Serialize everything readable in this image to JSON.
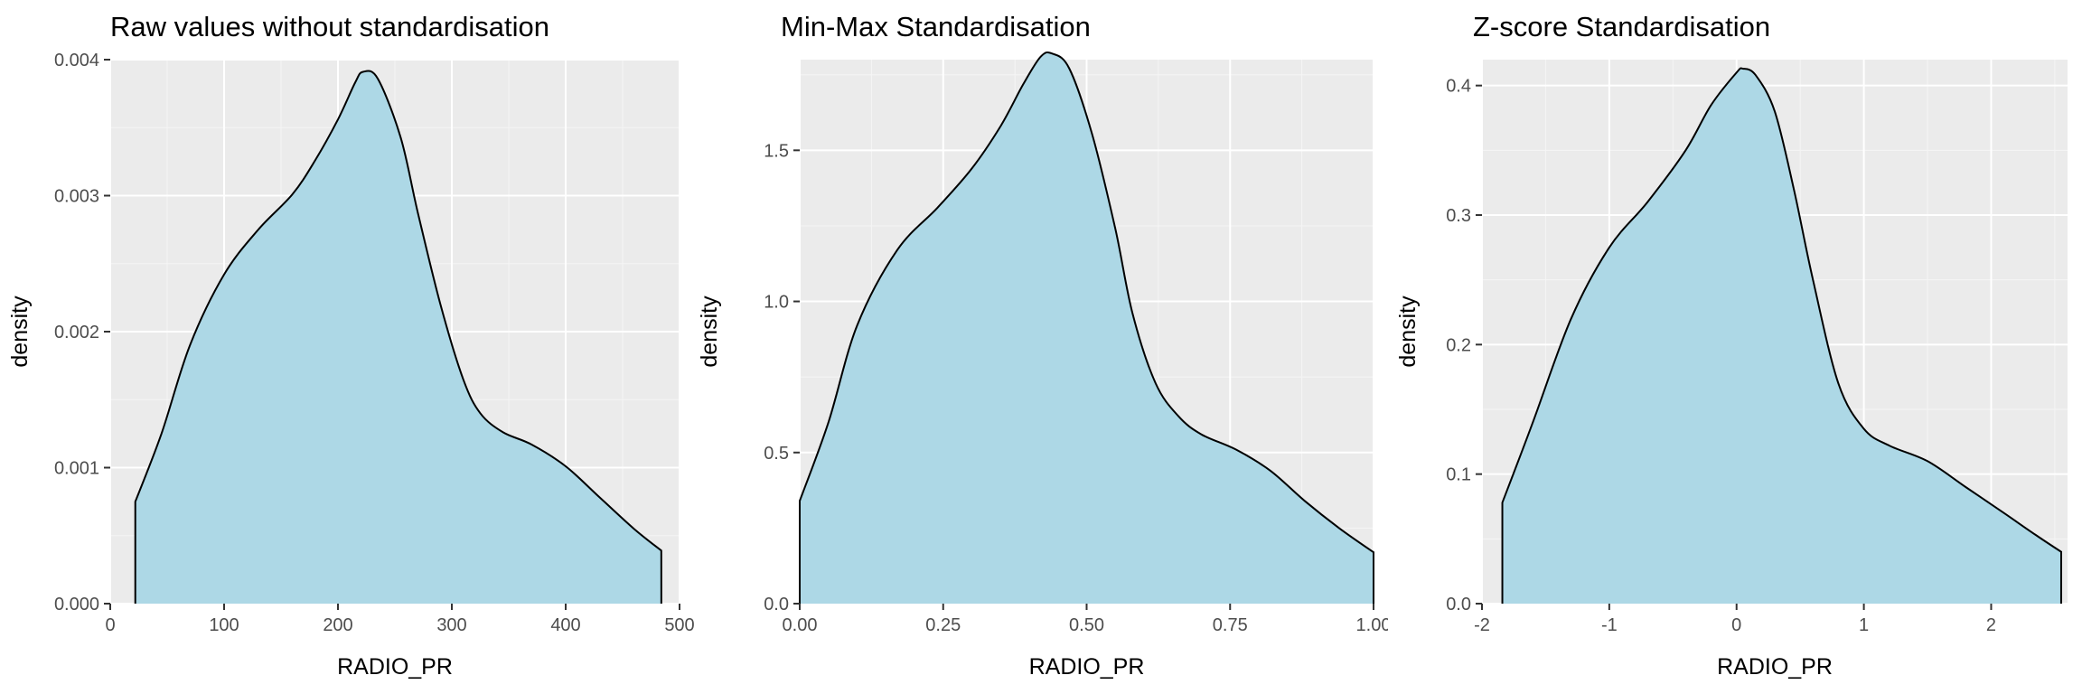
{
  "colors": {
    "panel_background": "#ebebeb",
    "grid_major": "#ffffff",
    "grid_minor": "#f5f5f5",
    "fill": "#add8e6",
    "line": "#000000",
    "tick_text": "#4d4d4d"
  },
  "chart_data": [
    {
      "type": "area",
      "title": "Raw values without standardisation",
      "xlabel": "RADIO_PR",
      "ylabel": "density",
      "xlim": [
        0,
        500
      ],
      "ylim": [
        0,
        0.004
      ],
      "x_ticks": [
        0,
        100,
        200,
        300,
        400,
        500
      ],
      "x_tick_labels": [
        "0",
        "100",
        "200",
        "300",
        "400",
        "500"
      ],
      "y_ticks": [
        0,
        0.001,
        0.002,
        0.003,
        0.004
      ],
      "y_tick_labels": [
        "0.000",
        "0.001",
        "0.002",
        "0.003",
        "0.004"
      ],
      "grid": true,
      "x": [
        22,
        45,
        70,
        100,
        130,
        160,
        180,
        200,
        215,
        222,
        235,
        255,
        270,
        290,
        310,
        325,
        345,
        370,
        400,
        430,
        460,
        484
      ],
      "y": [
        0.00075,
        0.00125,
        0.0019,
        0.00242,
        0.00275,
        0.00301,
        0.00326,
        0.00356,
        0.00383,
        0.00391,
        0.00386,
        0.00343,
        0.00288,
        0.0022,
        0.00165,
        0.0014,
        0.00126,
        0.00117,
        0.00101,
        0.00078,
        0.00055,
        0.00039
      ]
    },
    {
      "type": "area",
      "title": "Min-Max Standardisation",
      "xlabel": "RADIO_PR",
      "ylabel": "density",
      "xlim": [
        0,
        1
      ],
      "ylim": [
        0,
        1.8
      ],
      "x_ticks": [
        0,
        0.25,
        0.5,
        0.75,
        1
      ],
      "x_tick_labels": [
        "0.00",
        "0.25",
        "0.50",
        "0.75",
        "1.00"
      ],
      "y_ticks": [
        0,
        0.5,
        1.0,
        1.5
      ],
      "y_tick_labels": [
        "0.0",
        "0.5",
        "1.0",
        "1.5"
      ],
      "grid": true,
      "x": [
        0,
        0.05,
        0.1,
        0.17,
        0.24,
        0.3,
        0.35,
        0.39,
        0.42,
        0.44,
        0.47,
        0.51,
        0.55,
        0.58,
        0.62,
        0.66,
        0.7,
        0.76,
        0.82,
        0.88,
        0.94,
        1.0
      ],
      "y": [
        0.34,
        0.6,
        0.92,
        1.17,
        1.31,
        1.44,
        1.58,
        1.72,
        1.81,
        1.82,
        1.77,
        1.55,
        1.24,
        0.96,
        0.73,
        0.62,
        0.56,
        0.51,
        0.44,
        0.34,
        0.25,
        0.17
      ]
    },
    {
      "type": "area",
      "title": "Z-score Standardisation",
      "xlabel": "RADIO_PR",
      "ylabel": "density",
      "xlim": [
        -2,
        2.6
      ],
      "ylim": [
        0,
        0.42
      ],
      "x_ticks": [
        -2,
        -1,
        0,
        1,
        2
      ],
      "x_tick_labels": [
        "-2",
        "-1",
        "0",
        "1",
        "2"
      ],
      "y_ticks": [
        0,
        0.1,
        0.2,
        0.3,
        0.4
      ],
      "y_tick_labels": [
        "0.0",
        "0.1",
        "0.2",
        "0.3",
        "0.4"
      ],
      "grid": true,
      "x": [
        -1.84,
        -1.6,
        -1.3,
        -1.0,
        -0.7,
        -0.4,
        -0.2,
        0.0,
        0.05,
        0.15,
        0.3,
        0.45,
        0.6,
        0.8,
        1.0,
        1.2,
        1.5,
        1.8,
        2.1,
        2.35,
        2.55
      ],
      "y": [
        0.078,
        0.14,
        0.22,
        0.275,
        0.31,
        0.35,
        0.385,
        0.41,
        0.413,
        0.408,
        0.38,
        0.32,
        0.25,
        0.17,
        0.135,
        0.122,
        0.11,
        0.09,
        0.07,
        0.053,
        0.04
      ]
    }
  ]
}
